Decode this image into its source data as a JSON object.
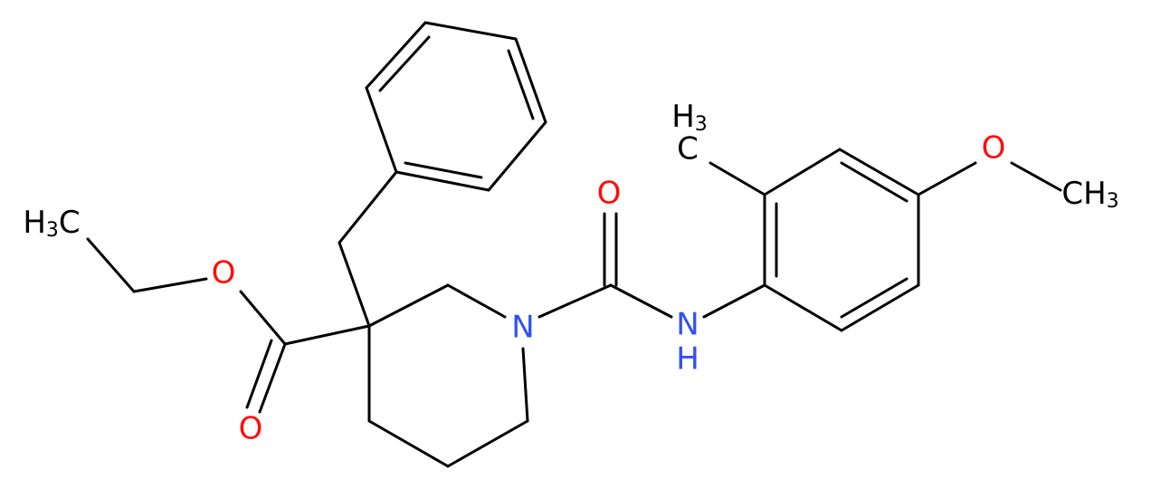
{
  "atoms": {
    "ethyl_methyl": {
      "h": "H",
      "n": "3",
      "c": "C"
    },
    "ester_o": "O",
    "carbonyl_o": "O",
    "ring_n": "N",
    "amide_o": "O",
    "amide_n": "N",
    "amide_h": "H",
    "aryl_methyl": {
      "h": "H",
      "n": "3",
      "c": "C"
    },
    "methoxy_o": "O",
    "methoxy_methyl": {
      "c": "CH",
      "n": "3"
    }
  }
}
